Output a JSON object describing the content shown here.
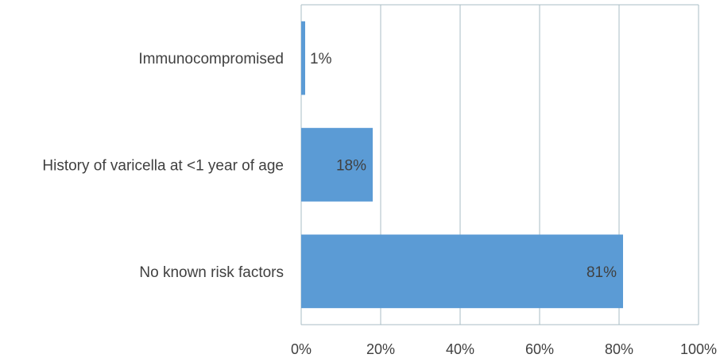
{
  "chart_data": {
    "type": "bar",
    "orientation": "horizontal",
    "categories": [
      "Immunocompromised",
      "History of varicella at <1 year of age",
      "No known risk factors"
    ],
    "values": [
      1,
      18,
      81
    ],
    "data_labels": [
      "1%",
      "18%",
      "81%"
    ],
    "xlim": [
      0,
      100
    ],
    "x_ticks": [
      0,
      20,
      40,
      60,
      80,
      100
    ],
    "x_tick_labels": [
      "0%",
      "20%",
      "40%",
      "60%",
      "80%",
      "100%"
    ],
    "grid": true,
    "legend": "none",
    "colors": {
      "bar": "#5b9bd5",
      "grid": "#a9bcc4",
      "text": "#404040"
    }
  }
}
